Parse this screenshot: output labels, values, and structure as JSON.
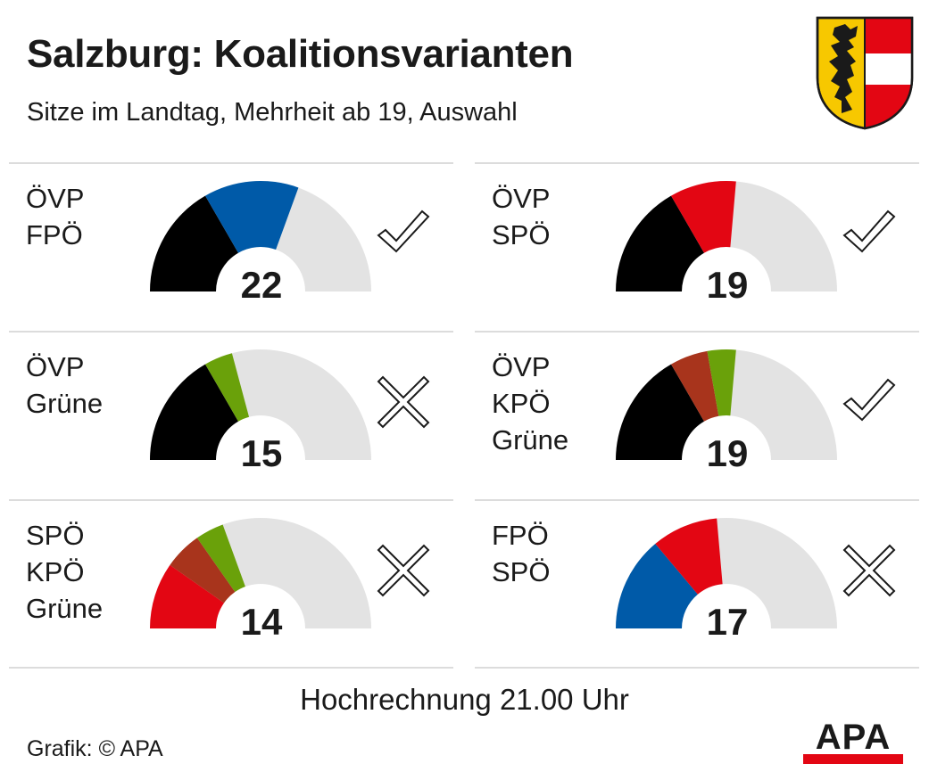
{
  "title": "Salzburg: Koalitionsvarianten",
  "subtitle": "Sitze im Landtag, Mehrheit ab 19, Auswahl",
  "footnote": "Hochrechnung 21.00 Uhr",
  "credit": "Grafik: © APA",
  "logo_text": "APA",
  "coat_of_arms_icon": "salzburg-coat-of-arms-icon",
  "colors": {
    "ÖVP": "#000000",
    "FPÖ": "#005aa8",
    "SPÖ": "#e30613",
    "Grüne": "#6aa10a",
    "KPÖ": "#a8341c",
    "empty": "#e3e3e3",
    "apa_red": "#e30613"
  },
  "chart_data": {
    "type": "half-donut",
    "total_seats": 36,
    "majority_from": 19,
    "coalitions": [
      {
        "parties": [
          "ÖVP",
          "FPÖ"
        ],
        "seats": [
          12,
          10
        ],
        "total": "22",
        "majority": true,
        "icon": "check-icon"
      },
      {
        "parties": [
          "ÖVP",
          "SPÖ"
        ],
        "seats": [
          12,
          7
        ],
        "total": "19",
        "majority": true,
        "icon": "check-icon"
      },
      {
        "parties": [
          "ÖVP",
          "Grüne"
        ],
        "seats": [
          12,
          3
        ],
        "total": "15",
        "majority": false,
        "icon": "cross-icon"
      },
      {
        "parties": [
          "ÖVP",
          "KPÖ",
          "Grüne"
        ],
        "seats": [
          12,
          4,
          3
        ],
        "total": "19",
        "majority": true,
        "icon": "check-icon"
      },
      {
        "parties": [
          "SPÖ",
          "KPÖ",
          "Grüne"
        ],
        "seats": [
          7,
          4,
          3
        ],
        "total": "14",
        "majority": false,
        "icon": "cross-icon"
      },
      {
        "parties": [
          "FPÖ",
          "SPÖ"
        ],
        "seats": [
          10,
          7
        ],
        "total": "17",
        "majority": false,
        "icon": "cross-icon"
      }
    ]
  }
}
